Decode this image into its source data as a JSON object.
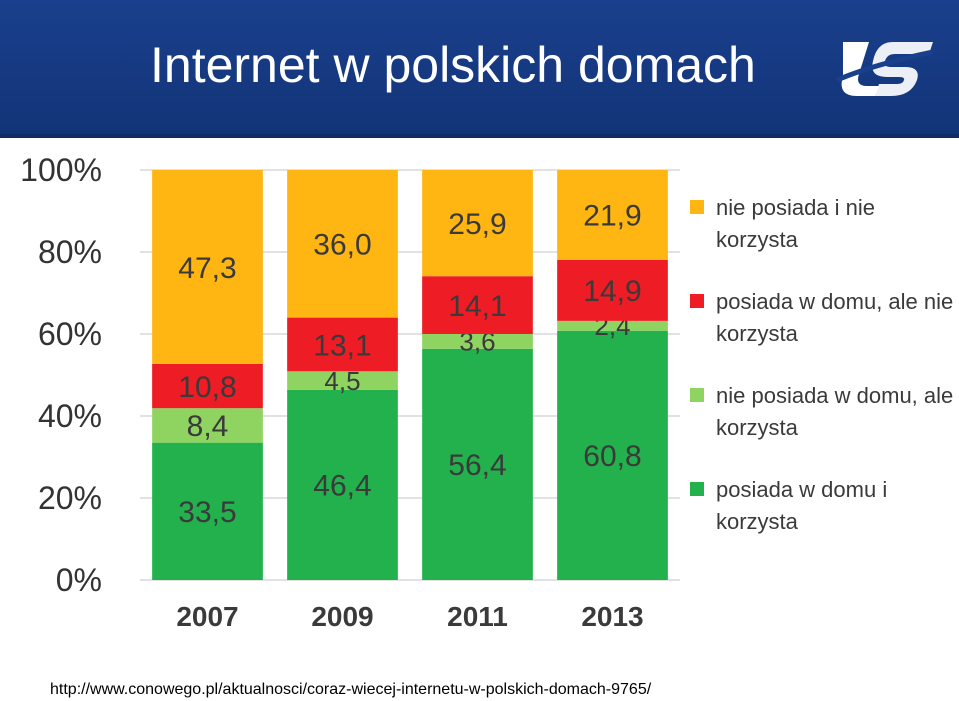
{
  "header": {
    "title": "Internet w polskich domach"
  },
  "colors": {
    "header_bg": "#1a3f8c",
    "series": [
      "#22b14c",
      "#8fd460",
      "#ee1c24",
      "#ffb612"
    ]
  },
  "chart_data": {
    "type": "bar",
    "stacked": true,
    "categories": [
      "2007",
      "2009",
      "2011",
      "2013"
    ],
    "series": [
      {
        "name": "posiada w domu i korzysta",
        "values": [
          33.5,
          46.4,
          56.4,
          60.8
        ],
        "labels": [
          "33,5",
          "46,4",
          "56,4",
          "60,8"
        ],
        "color": "#22b14c"
      },
      {
        "name": "nie posiada w domu, ale korzysta",
        "values": [
          8.4,
          4.5,
          3.6,
          2.4
        ],
        "labels": [
          "8,4",
          "4,5",
          "3,6",
          "2,4"
        ],
        "color": "#8fd460"
      },
      {
        "name": "posiada w domu, ale nie korzysta",
        "values": [
          10.8,
          13.1,
          14.1,
          14.9
        ],
        "labels": [
          "10,8",
          "13,1",
          "14,1",
          "14,9"
        ],
        "color": "#ee1c24"
      },
      {
        "name": "nie posiada i nie korzysta",
        "values": [
          47.3,
          36.0,
          25.9,
          21.9
        ],
        "labels": [
          "47,3",
          "36,0",
          "25,9",
          "21,9"
        ],
        "color": "#ffb612"
      }
    ],
    "y_ticks": [
      "0%",
      "20%",
      "40%",
      "60%",
      "80%",
      "100%"
    ],
    "ylim": [
      0,
      100
    ],
    "grid": true,
    "legend_position": "right"
  },
  "legend": {
    "items": [
      {
        "label": "nie posiada i nie korzysta",
        "color": "#ffb612"
      },
      {
        "label": "posiada w domu, ale nie korzysta",
        "color": "#ee1c24"
      },
      {
        "label": "nie posiada w domu, ale korzysta",
        "color": "#8fd460"
      },
      {
        "label": "posiada w domu i korzysta",
        "color": "#22b14c"
      }
    ]
  },
  "source": {
    "text": "http://www.conowego.pl/aktualnosci/coraz-wiecej-internetu-w-polskich-domach-9765/"
  }
}
